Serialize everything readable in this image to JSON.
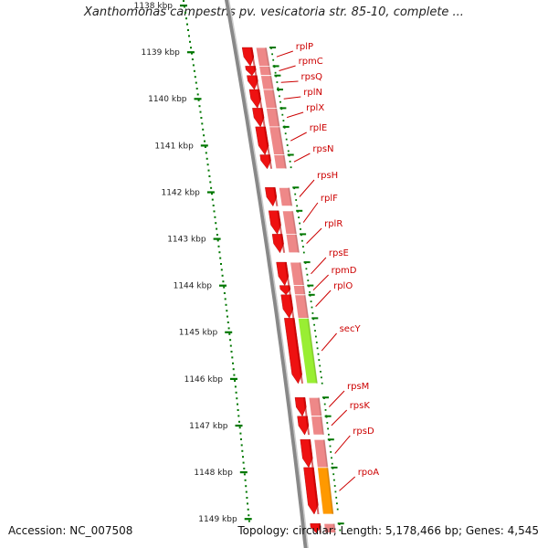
{
  "title": "Xanthomonas campestris pv. vesicatoria str. 85-10, complete ...",
  "footer": {
    "accession": "Accession: NC_007508",
    "summary": "Topology: circular; Length: 5,178,466 bp; Genes: 4,545"
  },
  "colors": {
    "gene_strand": "#ee1111",
    "feature_track": "#ee8888",
    "secY": "#99ee33",
    "rpoA": "#ff9900",
    "label": "#cc0000",
    "tick": "#007700",
    "backbone": "#888888"
  },
  "chart_data": {
    "type": "genome-map",
    "kbp_range": [
      1138,
      1149
    ],
    "tick_labels": [
      "1138 kbp",
      "1139 kbp",
      "1140 kbp",
      "1141 kbp",
      "1142 kbp",
      "1143 kbp",
      "1144 kbp",
      "1145 kbp",
      "1146 kbp",
      "1147 kbp",
      "1148 kbp",
      "1149 kbp"
    ],
    "genes": [
      {
        "name": "rplP",
        "start": 1138.9,
        "end": 1139.3,
        "track_color": "feature_track"
      },
      {
        "name": "rpmC",
        "start": 1139.3,
        "end": 1139.5,
        "track_color": "feature_track"
      },
      {
        "name": "rpsQ",
        "start": 1139.5,
        "end": 1139.8,
        "track_color": "feature_track"
      },
      {
        "name": "rplN",
        "start": 1139.8,
        "end": 1140.2,
        "track_color": "feature_track"
      },
      {
        "name": "rplX",
        "start": 1140.2,
        "end": 1140.6,
        "track_color": "feature_track"
      },
      {
        "name": "rplE",
        "start": 1140.6,
        "end": 1141.2,
        "track_color": "feature_track"
      },
      {
        "name": "rpsN",
        "start": 1141.2,
        "end": 1141.5,
        "track_color": "feature_track"
      },
      {
        "name": "rpsH",
        "start": 1141.9,
        "end": 1142.3,
        "track_color": "feature_track"
      },
      {
        "name": "rplF",
        "start": 1142.4,
        "end": 1142.9,
        "track_color": "feature_track"
      },
      {
        "name": "rplR",
        "start": 1142.9,
        "end": 1143.3,
        "track_color": "feature_track"
      },
      {
        "name": "rpsE",
        "start": 1143.5,
        "end": 1144.0,
        "track_color": "feature_track"
      },
      {
        "name": "rpmD",
        "start": 1144.0,
        "end": 1144.2,
        "track_color": "feature_track"
      },
      {
        "name": "rplO",
        "start": 1144.2,
        "end": 1144.7,
        "track_color": "feature_track"
      },
      {
        "name": "secY",
        "start": 1144.7,
        "end": 1146.1,
        "track_color": "secY"
      },
      {
        "name": "rpsM",
        "start": 1146.4,
        "end": 1146.8,
        "track_color": "feature_track"
      },
      {
        "name": "rpsK",
        "start": 1146.8,
        "end": 1147.2,
        "track_color": "feature_track"
      },
      {
        "name": "rpsD",
        "start": 1147.3,
        "end": 1147.9,
        "track_color": "feature_track"
      },
      {
        "name": "rpoA",
        "start": 1147.9,
        "end": 1148.9,
        "track_color": "rpoA"
      },
      {
        "name": "",
        "start": 1149.1,
        "end": 1149.3,
        "track_color": "feature_track"
      }
    ]
  }
}
